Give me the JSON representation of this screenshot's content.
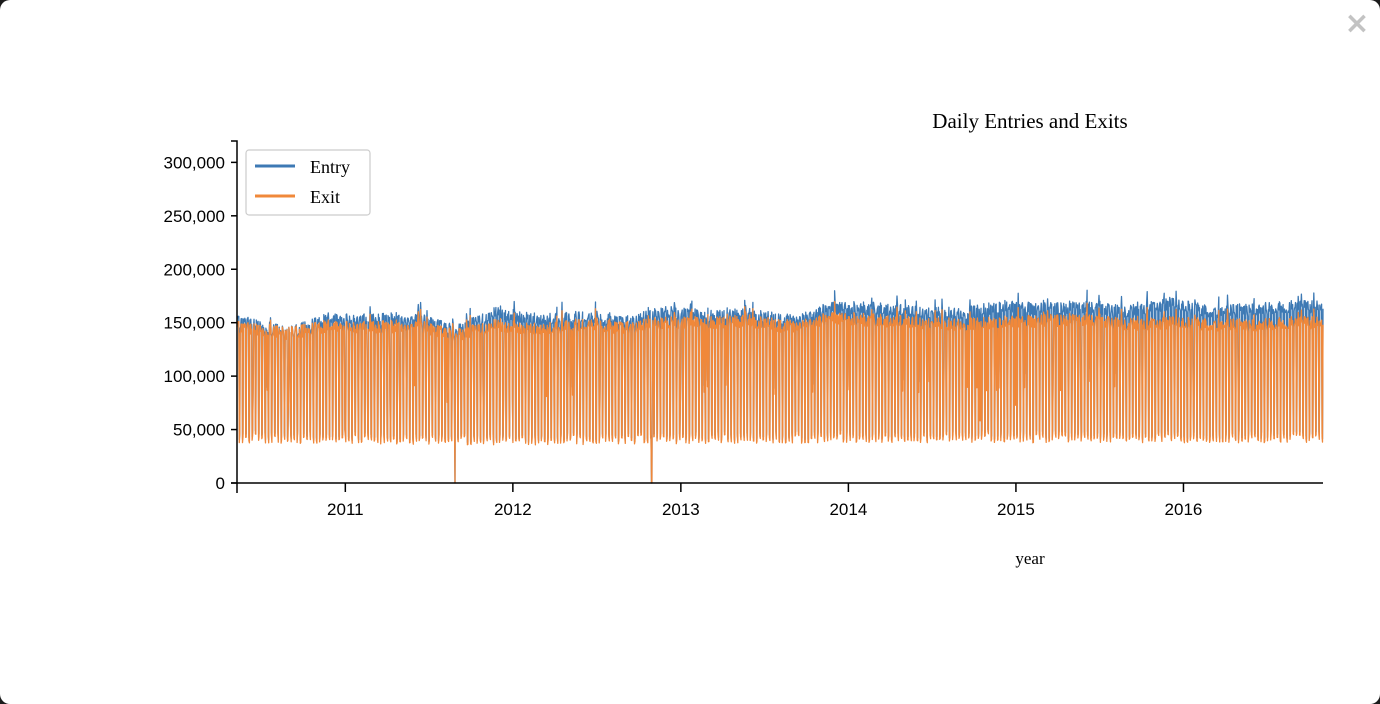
{
  "modal": {
    "close_label": "×"
  },
  "chart_data": {
    "type": "line",
    "title": "Daily Entries and Exits",
    "xlabel": "year",
    "ylabel": "",
    "xlim": [
      "2010-05-10",
      "2016-10-31"
    ],
    "ylim": [
      0,
      320000
    ],
    "y_ticks": [
      0,
      50000,
      100000,
      150000,
      200000,
      250000,
      300000
    ],
    "x_ticks": [
      "2011",
      "2012",
      "2013",
      "2014",
      "2015",
      "2016"
    ],
    "grid": false,
    "legend_position": "top-left",
    "series": [
      {
        "name": "Entry",
        "color": "#3d79b4",
        "weekday_level": [
          [
            "2010-06-01",
            150000
          ],
          [
            "2010-09-01",
            140000
          ],
          [
            "2010-12-01",
            155000
          ],
          [
            "2011-03-01",
            152000
          ],
          [
            "2011-06-01",
            155000
          ],
          [
            "2011-09-01",
            142000
          ],
          [
            "2011-12-01",
            160000
          ],
          [
            "2012-03-01",
            152000
          ],
          [
            "2012-06-01",
            155000
          ],
          [
            "2012-09-01",
            150000
          ],
          [
            "2012-12-01",
            160000
          ],
          [
            "2013-03-01",
            156000
          ],
          [
            "2013-06-01",
            158000
          ],
          [
            "2013-09-01",
            150000
          ],
          [
            "2013-12-01",
            165000
          ],
          [
            "2014-03-01",
            163000
          ],
          [
            "2014-06-01",
            160000
          ],
          [
            "2014-09-01",
            158000
          ],
          [
            "2014-12-01",
            165000
          ],
          [
            "2015-03-01",
            163000
          ],
          [
            "2015-06-01",
            165000
          ],
          [
            "2015-09-01",
            160000
          ],
          [
            "2015-12-01",
            168000
          ],
          [
            "2016-03-01",
            160000
          ],
          [
            "2016-06-01",
            162000
          ],
          [
            "2016-09-01",
            165000
          ]
        ],
        "weekend_level": [
          [
            "2010-06-01",
            45000
          ],
          [
            "2012-01-01",
            42000
          ],
          [
            "2014-01-01",
            45000
          ],
          [
            "2016-09-01",
            45000
          ]
        ]
      },
      {
        "name": "Exit",
        "color": "#f0883a",
        "weekday_level": [
          [
            "2010-06-01",
            145000
          ],
          [
            "2010-09-01",
            140000
          ],
          [
            "2010-12-01",
            148000
          ],
          [
            "2011-03-01",
            145000
          ],
          [
            "2011-06-01",
            148000
          ],
          [
            "2011-09-01",
            138000
          ],
          [
            "2011-12-01",
            148000
          ],
          [
            "2012-03-01",
            143000
          ],
          [
            "2012-06-01",
            148000
          ],
          [
            "2012-09-01",
            145000
          ],
          [
            "2012-12-01",
            150000
          ],
          [
            "2013-03-01",
            150000
          ],
          [
            "2013-06-01",
            152000
          ],
          [
            "2013-09-01",
            145000
          ],
          [
            "2013-12-01",
            155000
          ],
          [
            "2014-03-01",
            152000
          ],
          [
            "2014-06-01",
            150000
          ],
          [
            "2014-09-01",
            148000
          ],
          [
            "2014-12-01",
            150000
          ],
          [
            "2015-03-01",
            152000
          ],
          [
            "2015-06-01",
            153000
          ],
          [
            "2015-09-01",
            148000
          ],
          [
            "2015-12-01",
            150000
          ],
          [
            "2016-03-01",
            148000
          ],
          [
            "2016-06-01",
            147000
          ],
          [
            "2016-09-01",
            150000
          ]
        ],
        "weekend_level": [
          [
            "2010-06-01",
            42000
          ],
          [
            "2012-01-01",
            40000
          ],
          [
            "2014-01-01",
            42000
          ],
          [
            "2016-09-01",
            42000
          ]
        ]
      }
    ],
    "dips": [
      [
        "2010-12-31",
        50000
      ],
      [
        "2011-08-28",
        0
      ],
      [
        "2011-12-31",
        80000
      ],
      [
        "2012-04-30",
        90000
      ],
      [
        "2012-10-29",
        0
      ],
      [
        "2012-10-30",
        0
      ],
      [
        "2012-12-31",
        80000
      ],
      [
        "2013-12-31",
        90000
      ],
      [
        "2014-10-15",
        60000
      ],
      [
        "2014-11-01",
        50000
      ],
      [
        "2014-12-31",
        75000
      ]
    ]
  }
}
